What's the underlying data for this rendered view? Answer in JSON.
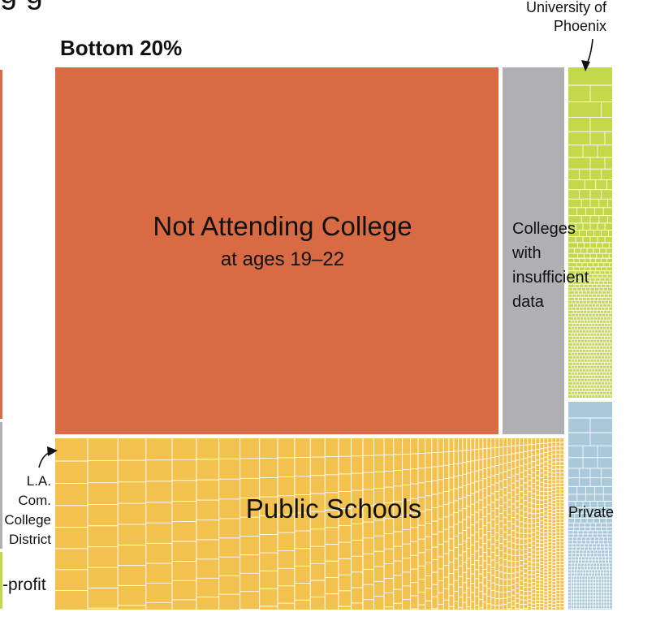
{
  "colors": {
    "not_attending": "#d96b44",
    "insufficient": "#b0b0b4",
    "public": "#f2c14e",
    "for_profit": "#c4d94a",
    "private": "#a9c8da",
    "grid_line": "#ffffff"
  },
  "partial_title": "g  g",
  "panel_title": "Bottom 20%",
  "chart_data": {
    "type": "treemap",
    "title": "Bottom 20%",
    "cells": [
      {
        "name": "Not Attending College",
        "sublabel": "at ages 19–22",
        "share": 0.48
      },
      {
        "name": "Colleges with insufficient data",
        "label_lines": [
          "Colleges",
          "with",
          "insufficient",
          "data"
        ],
        "share": 0.06
      },
      {
        "name": "Public Schools",
        "share": 0.33
      },
      {
        "name": "For-profit",
        "visible_label": "-profit",
        "share": 0.05
      },
      {
        "name": "Private",
        "share": 0.04
      }
    ],
    "callouts": [
      {
        "lines": [
          "University of",
          "Phoenix"
        ]
      },
      {
        "lines": [
          "L.A.",
          "Com.",
          "College",
          "District"
        ]
      }
    ]
  }
}
